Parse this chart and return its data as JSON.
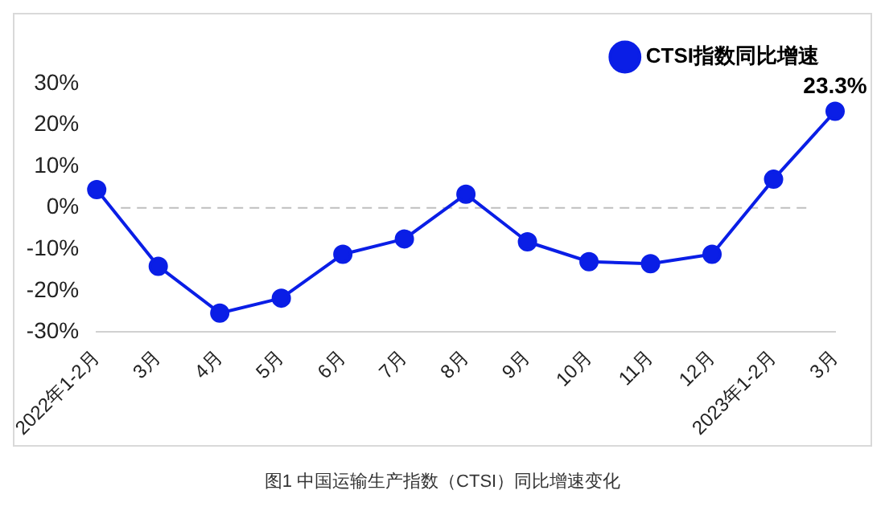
{
  "chart_data": {
    "type": "line",
    "categories": [
      "2022年1-2月",
      "3月",
      "4月",
      "5月",
      "6月",
      "7月",
      "8月",
      "9月",
      "10月",
      "11月",
      "12月",
      "2023年1-2月",
      "3月"
    ],
    "series": [
      {
        "name": "CTSI指数同比增速",
        "color": "#0a1ee6",
        "values": [
          4.4,
          -14.1,
          -25.4,
          -21.8,
          -11.2,
          -7.5,
          3.3,
          -8.2,
          -13.0,
          -13.5,
          -11.2,
          6.9,
          23.3
        ],
        "value_labels": [
          null,
          null,
          null,
          null,
          null,
          null,
          null,
          null,
          null,
          null,
          null,
          null,
          "23.3%"
        ]
      }
    ],
    "ylim": [
      -30,
      30
    ],
    "yticks": [
      {
        "value": -30,
        "label": "-30%"
      },
      {
        "value": -20,
        "label": "-20%"
      },
      {
        "value": -10,
        "label": "-10%"
      },
      {
        "value": 0,
        "label": "0%"
      },
      {
        "value": 10,
        "label": "10%"
      },
      {
        "value": 20,
        "label": "20%"
      },
      {
        "value": 30,
        "label": "30%"
      }
    ],
    "ref_lines": [
      {
        "axis": "y",
        "value": 0,
        "color": "#bfbfbf",
        "line_style": "dashed"
      }
    ],
    "grid": false,
    "legend": "top right",
    "marker": "circle",
    "line_style": "solid",
    "annotations": [
      "图1  中国运输生产指数（CTSI）同比增速变化"
    ]
  }
}
